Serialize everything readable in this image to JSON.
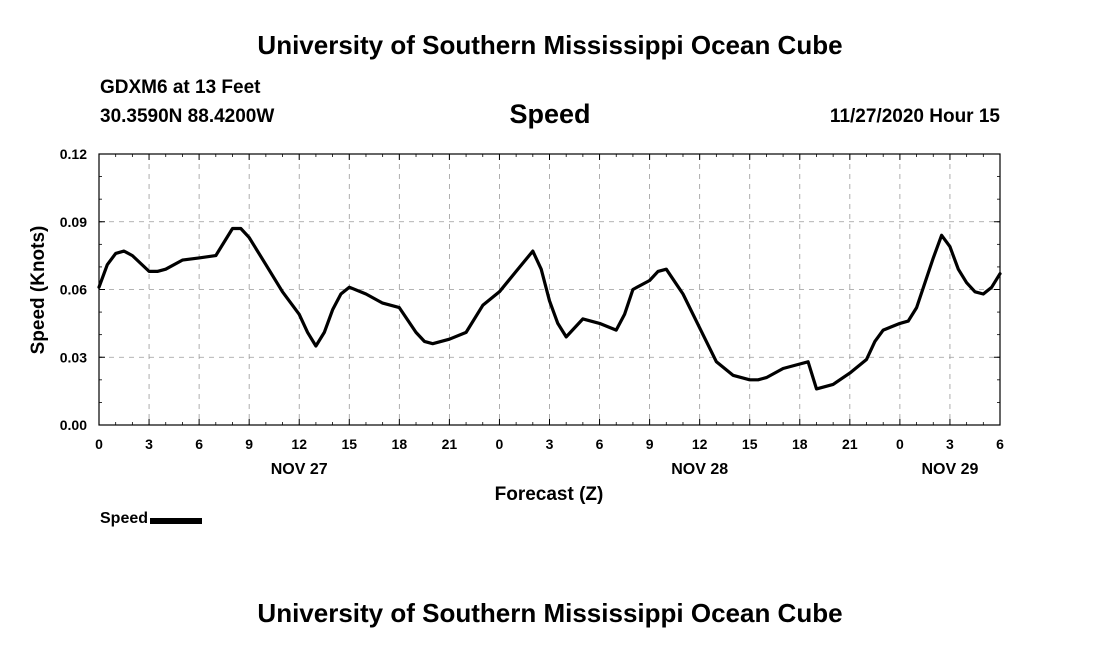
{
  "header": {
    "top_title": "University of Southern Mississippi Ocean Cube",
    "bottom_title": "University of Southern Mississippi Ocean Cube",
    "station": "GDXM6 at 13 Feet",
    "coordinates": "30.3590N 88.4200W",
    "datetime": "11/27/2020 Hour 15"
  },
  "legend": {
    "label": "Speed",
    "color": "#000000"
  },
  "chart_data": {
    "type": "line",
    "title": "Speed",
    "xlabel": "Forecast (Z)",
    "ylabel": "Speed (Knots)",
    "xlim": [
      0,
      54
    ],
    "ylim": [
      0,
      0.12
    ],
    "yticks": [
      0,
      0.03,
      0.06,
      0.09,
      0.12
    ],
    "ytick_labels": [
      "0.00",
      "0.03",
      "0.06",
      "0.09",
      "0.12"
    ],
    "xticks": [
      0,
      3,
      6,
      9,
      12,
      15,
      18,
      21,
      24,
      27,
      30,
      33,
      36,
      39,
      42,
      45,
      48,
      51,
      54
    ],
    "xtick_labels": [
      "0",
      "3",
      "6",
      "9",
      "12",
      "15",
      "18",
      "21",
      "0",
      "3",
      "6",
      "9",
      "12",
      "15",
      "18",
      "21",
      "0",
      "3",
      "6"
    ],
    "date_labels": [
      {
        "x": 12,
        "label": "NOV 27"
      },
      {
        "x": 36,
        "label": "NOV 28"
      },
      {
        "x": 51,
        "label": "NOV 29"
      }
    ],
    "grid": true,
    "series": [
      {
        "name": "Speed",
        "color": "#000000",
        "x": [
          0,
          0.5,
          1,
          1.5,
          2,
          3,
          3.5,
          4,
          5,
          6,
          7,
          8,
          8.5,
          9,
          10,
          11,
          12,
          12.5,
          13,
          13.5,
          14,
          14.5,
          15,
          16,
          17,
          18,
          19,
          19.5,
          20,
          21,
          22,
          23,
          24,
          25,
          26,
          26.5,
          27,
          27.5,
          28,
          29,
          30,
          31,
          31.5,
          32,
          33,
          33.5,
          34,
          35,
          36,
          37,
          38,
          39,
          39.5,
          40,
          41,
          42,
          42.5,
          43,
          44,
          45,
          46,
          46.5,
          47,
          48,
          48.5,
          49,
          50,
          50.5,
          51,
          51.5,
          52,
          52.5,
          53,
          53.5,
          54
        ],
        "values": [
          0.061,
          0.071,
          0.076,
          0.077,
          0.075,
          0.068,
          0.068,
          0.069,
          0.073,
          0.074,
          0.075,
          0.087,
          0.087,
          0.083,
          0.071,
          0.059,
          0.049,
          0.041,
          0.035,
          0.041,
          0.051,
          0.058,
          0.061,
          0.058,
          0.054,
          0.052,
          0.041,
          0.037,
          0.036,
          0.038,
          0.041,
          0.053,
          0.059,
          0.068,
          0.077,
          0.069,
          0.055,
          0.045,
          0.039,
          0.047,
          0.045,
          0.042,
          0.049,
          0.06,
          0.064,
          0.068,
          0.069,
          0.058,
          0.043,
          0.028,
          0.022,
          0.02,
          0.02,
          0.021,
          0.025,
          0.027,
          0.028,
          0.016,
          0.018,
          0.023,
          0.029,
          0.037,
          0.042,
          0.045,
          0.046,
          0.052,
          0.074,
          0.084,
          0.079,
          0.069,
          0.063,
          0.059,
          0.058,
          0.061,
          0.067
        ]
      }
    ]
  }
}
